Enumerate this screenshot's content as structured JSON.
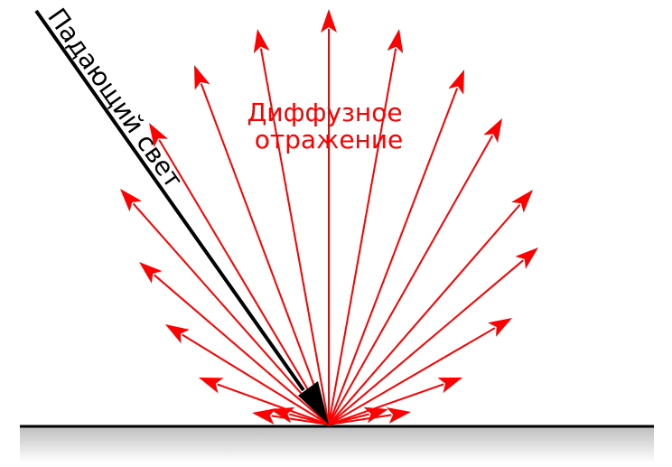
{
  "diagram": {
    "incident_label": "Падающий свет",
    "reflection_label_line1": "Диффузное",
    "reflection_label_line2": "отражение",
    "colors": {
      "incident": "#000000",
      "reflection": "#ff0000",
      "surface_line": "#000000",
      "surface_shade_top": "#bdbdbd",
      "surface_shade_bottom": "#ffffff"
    }
  }
}
